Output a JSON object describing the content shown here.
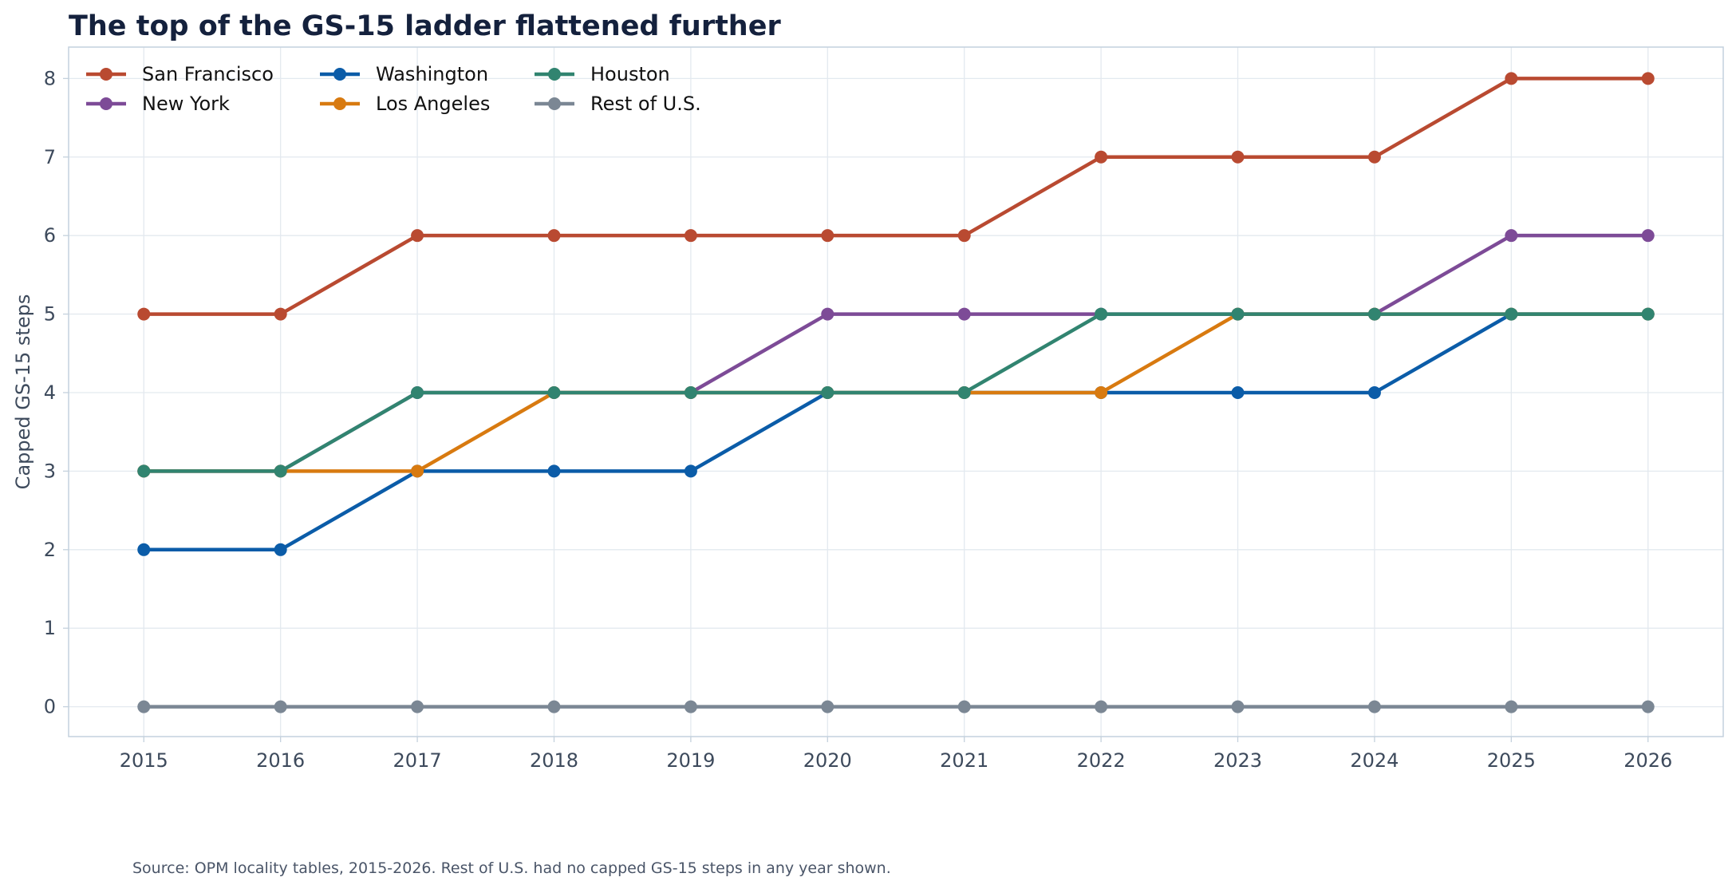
{
  "chart_data": {
    "type": "line",
    "title": "The top of the GS-15 ladder flattened further",
    "xlabel": "",
    "ylabel": "Capped GS-15 steps",
    "x": [
      2015,
      2016,
      2017,
      2018,
      2019,
      2020,
      2021,
      2022,
      2023,
      2024,
      2025,
      2026
    ],
    "x_tick_labels": [
      "2015",
      "2016",
      "2017",
      "2018",
      "2019",
      "2020",
      "2021",
      "2022",
      "2023",
      "2024",
      "2025",
      "2026"
    ],
    "y_ticks": [
      0,
      1,
      2,
      3,
      4,
      5,
      6,
      7,
      8
    ],
    "y_tick_labels": [
      "0",
      "1",
      "2",
      "3",
      "4",
      "5",
      "6",
      "7",
      "8"
    ],
    "ylim": [
      -0.38,
      8.4
    ],
    "xlim": [
      2014.45,
      2026.55
    ],
    "grid": true,
    "legend_position": "top-left",
    "series": [
      {
        "name": "San Francisco",
        "color": "#b94a31",
        "values": [
          5,
          5,
          6,
          6,
          6,
          6,
          6,
          7,
          7,
          7,
          8,
          8
        ]
      },
      {
        "name": "New York",
        "color": "#7d4b97",
        "values": [
          3,
          3,
          4,
          4,
          4,
          5,
          5,
          5,
          5,
          5,
          6,
          6
        ]
      },
      {
        "name": "Washington",
        "color": "#0b5ca8",
        "values": [
          2,
          2,
          3,
          3,
          3,
          4,
          4,
          4,
          4,
          4,
          5,
          5
        ]
      },
      {
        "name": "Los Angeles",
        "color": "#d87a10",
        "values": [
          3,
          3,
          3,
          4,
          4,
          4,
          4,
          4,
          5,
          5,
          5,
          5
        ]
      },
      {
        "name": "Houston",
        "color": "#318470",
        "values": [
          3,
          3,
          4,
          4,
          4,
          4,
          4,
          5,
          5,
          5,
          5,
          5
        ]
      },
      {
        "name": "Rest of U.S.",
        "color": "#7b8794",
        "values": [
          0,
          0,
          0,
          0,
          0,
          0,
          0,
          0,
          0,
          0,
          0,
          0
        ]
      }
    ],
    "source_note": "Source: OPM locality tables, 2015-2026. Rest of U.S. had no capped GS-15 steps in any year shown."
  }
}
